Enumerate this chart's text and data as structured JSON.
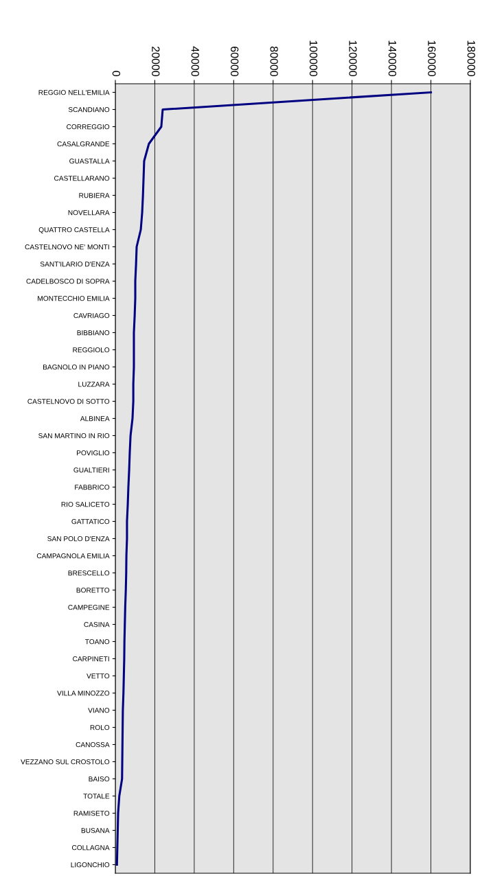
{
  "chart_data": {
    "type": "line",
    "orientation": "horizontal",
    "categories": [
      "REGGIO NELL'EMILIA",
      "SCANDIANO",
      "CORREGGIO",
      "CASALGRANDE",
      "GUASTALLA",
      "CASTELLARANO",
      "RUBIERA",
      "NOVELLARA",
      "QUATTRO CASTELLA",
      "CASTELNOVO NE' MONTI",
      "SANT'ILARIO D'ENZA",
      "CADELBOSCO DI SOPRA",
      "MONTECCHIO EMILIA",
      "CAVRIAGO",
      "BIBBIANO",
      "REGGIOLO",
      "BAGNOLO IN PIANO",
      "LUZZARA",
      "CASTELNOVO DI SOTTO",
      "ALBINEA",
      "SAN MARTINO IN RIO",
      "POVIGLIO",
      "GUALTIERI",
      "FABBRICO",
      "RIO SALICETO",
      "GATTATICO",
      "SAN POLO D'ENZA",
      "CAMPAGNOLA EMILIA",
      "BRESCELLO",
      "BORETTO",
      "CAMPEGINE",
      "CASINA",
      "TOANO",
      "CARPINETI",
      "VETTO",
      "VILLA MINOZZO",
      "VIANO",
      "ROLO",
      "CANOSSA",
      "VEZZANO SUL CROSTOLO",
      "BAISO",
      "TOTALE",
      "RAMISETO",
      "BUSANA",
      "COLLAGNA",
      "LIGONCHIO"
    ],
    "series": [
      {
        "color": "#000080",
        "values": [
          160000,
          24000,
          23300,
          17000,
          14600,
          14300,
          14000,
          13600,
          12900,
          10800,
          10500,
          10100,
          10100,
          9800,
          9400,
          9400,
          9400,
          9100,
          9100,
          8700,
          7700,
          7300,
          7000,
          6600,
          6300,
          5900,
          5900,
          5600,
          5500,
          5300,
          5000,
          4800,
          4600,
          4500,
          4300,
          4100,
          3800,
          3700,
          3600,
          3500,
          3400,
          2000,
          1400,
          1200,
          1000,
          800
        ]
      }
    ],
    "xlim": [
      0,
      180000
    ],
    "xticks": [
      0,
      20000,
      40000,
      60000,
      80000,
      100000,
      120000,
      140000,
      160000,
      180000
    ],
    "grid": "x",
    "marker": "none",
    "line_style": "solid"
  }
}
